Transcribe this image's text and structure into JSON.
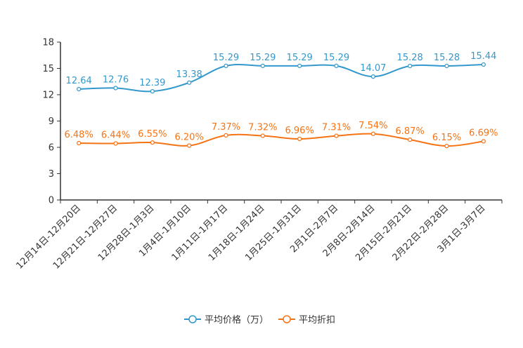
{
  "chart_data": {
    "type": "line",
    "title": "",
    "xlabel": "",
    "ylabel": "",
    "ylim": [
      0,
      18
    ],
    "yticks": [
      "0",
      "3",
      "6",
      "9",
      "12",
      "15",
      "18"
    ],
    "grid": false,
    "legend_position": "bottom",
    "categories": [
      "12月14日-12月20日",
      "12月21日-12月27日",
      "12月28日-1月3日",
      "1月4日-1月10日",
      "1月11日-1月17日",
      "1月18日-1月24日",
      "1月25日-1月31日",
      "2月1日-2月7日",
      "2月8日-2月14日",
      "2月15日-2月21日",
      "2月22日-2月28日",
      "3月1日-3月7日"
    ],
    "series": [
      {
        "name": "平均价格（万）",
        "color": "#3398cc",
        "values": [
          12.64,
          12.76,
          12.39,
          13.38,
          15.29,
          15.29,
          15.29,
          15.29,
          14.07,
          15.28,
          15.28,
          15.44
        ],
        "labels": [
          "12.64",
          "12.76",
          "12.39",
          "13.38",
          "15.29",
          "15.29",
          "15.29",
          "15.29",
          "14.07",
          "15.28",
          "15.28",
          "15.44"
        ]
      },
      {
        "name": "平均折扣",
        "color": "#f57314",
        "values": [
          6.48,
          6.44,
          6.55,
          6.2,
          7.37,
          7.32,
          6.96,
          7.31,
          7.54,
          6.87,
          6.15,
          6.69
        ],
        "labels": [
          "6.48%",
          "6.44%",
          "6.55%",
          "6.20%",
          "7.37%",
          "7.32%",
          "6.96%",
          "7.31%",
          "7.54%",
          "6.87%",
          "6.15%",
          "6.69%"
        ]
      }
    ]
  }
}
